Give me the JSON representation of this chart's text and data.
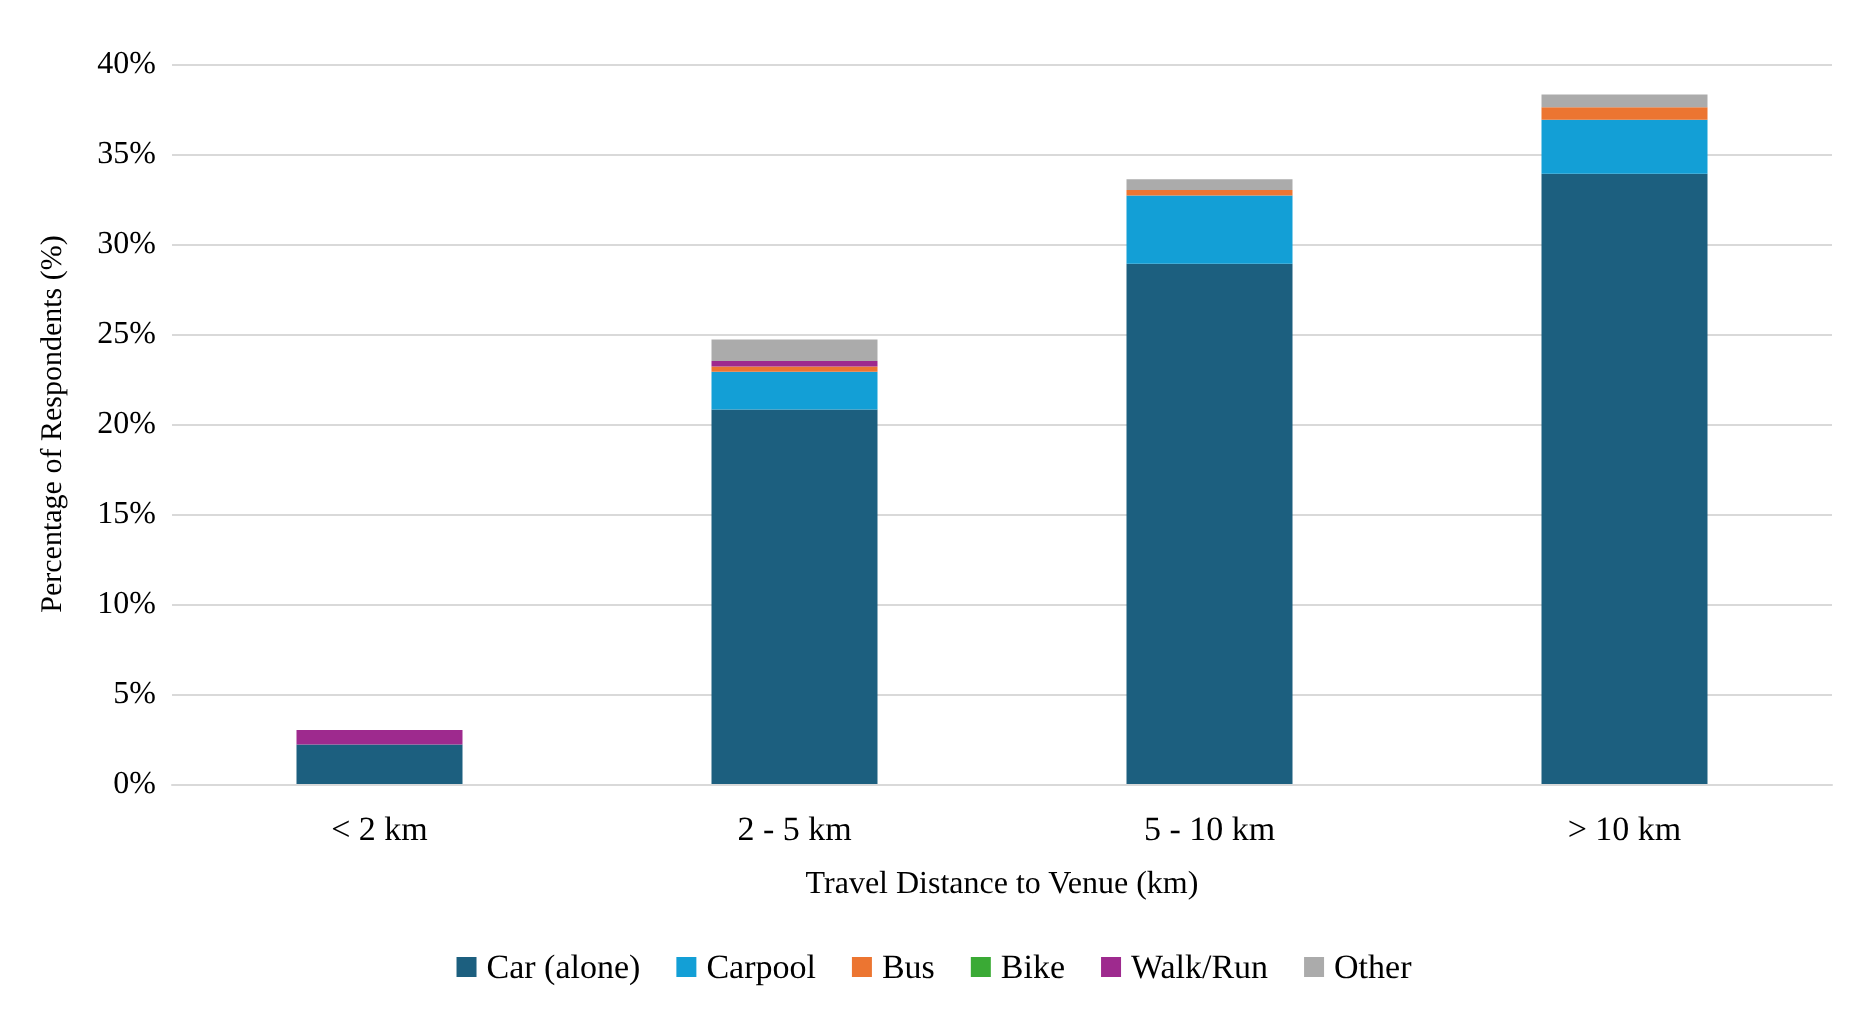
{
  "chart_data": {
    "type": "bar",
    "stacked": true,
    "xlabel": "Travel Distance to Venue (km)",
    "ylabel": "Percentage of Respondents (%)",
    "categories": [
      "< 2 km",
      "2 - 5 km",
      "5 - 10 km",
      "> 10 km"
    ],
    "series": [
      {
        "name": "Car (alone)",
        "color": "#1c5f7f",
        "values": [
          2.2,
          20.8,
          28.9,
          33.9
        ]
      },
      {
        "name": "Carpool",
        "color": "#139fd6",
        "values": [
          0,
          2.1,
          3.8,
          3.0
        ]
      },
      {
        "name": "Bus",
        "color": "#ec7531",
        "values": [
          0,
          0.3,
          0.3,
          0.7
        ]
      },
      {
        "name": "Bike",
        "color": "#3aaa35",
        "values": [
          0,
          0,
          0,
          0
        ]
      },
      {
        "name": "Walk/Run",
        "color": "#9e2a8e",
        "values": [
          0.8,
          0.3,
          0,
          0
        ]
      },
      {
        "name": "Other",
        "color": "#ababab",
        "values": [
          0,
          1.2,
          0.6,
          0.7
        ]
      }
    ],
    "ylim": [
      0,
      40
    ],
    "yticks": [
      {
        "value": 0,
        "label": "0%"
      },
      {
        "value": 5,
        "label": "5%"
      },
      {
        "value": 10,
        "label": "10%"
      },
      {
        "value": 15,
        "label": "15%"
      },
      {
        "value": 20,
        "label": "20%"
      },
      {
        "value": 25,
        "label": "25%"
      },
      {
        "value": 30,
        "label": "30%"
      },
      {
        "value": 35,
        "label": "35%"
      },
      {
        "value": 40,
        "label": "40%"
      }
    ],
    "grid": "y",
    "legend": "bottom"
  }
}
